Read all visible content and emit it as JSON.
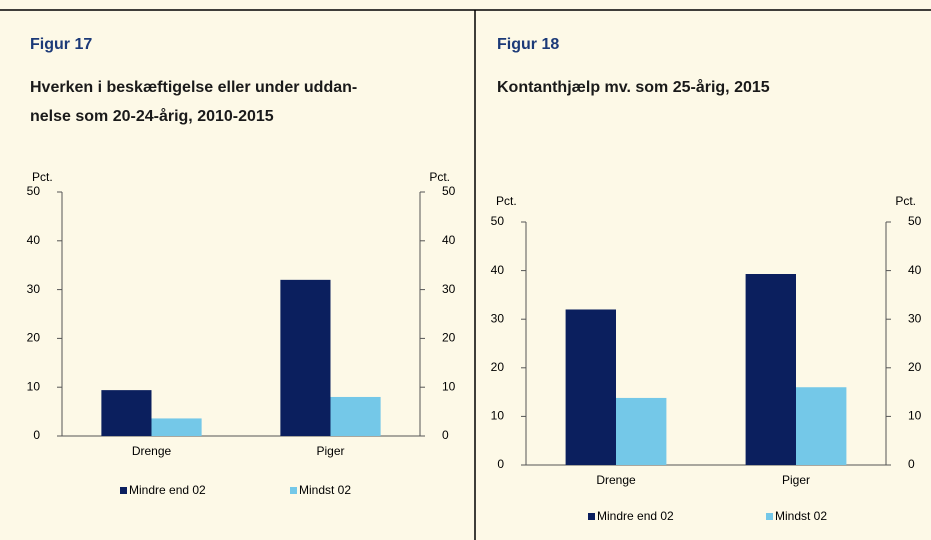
{
  "chart_data": [
    {
      "type": "bar",
      "label": "Figur 17",
      "title": [
        "Hverken i beskæftigelse eller under uddan-",
        "nelse som 20-24-årig, 2010-2015"
      ],
      "ylabel": "Pct.",
      "y2label": "Pct.",
      "categories": [
        "Drenge",
        "Piger"
      ],
      "series": [
        {
          "name": "Mindre end 02",
          "color": "#0b1f5e",
          "values": [
            9.4,
            32
          ]
        },
        {
          "name": "Mindst 02",
          "color": "#74c8e8",
          "values": [
            3.6,
            8
          ]
        }
      ],
      "ylim": [
        0,
        50
      ],
      "yticks": [
        0,
        10,
        20,
        30,
        40,
        50
      ],
      "y2lim": [
        0,
        50
      ],
      "y2ticks": [
        0,
        10,
        20,
        30,
        40,
        50
      ]
    },
    {
      "type": "bar",
      "label": "Figur 18",
      "title": [
        "Kontanthjælp mv. som 25-årig, 2015"
      ],
      "ylabel": "Pct.",
      "y2label": "Pct.",
      "categories": [
        "Drenge",
        "Piger"
      ],
      "series": [
        {
          "name": "Mindre end 02",
          "color": "#0b1f5e",
          "values": [
            32,
            39.3
          ]
        },
        {
          "name": "Mindst 02",
          "color": "#74c8e8",
          "values": [
            13.8,
            16
          ]
        }
      ],
      "ylim": [
        0,
        50
      ],
      "yticks": [
        0,
        10,
        20,
        30,
        40,
        50
      ],
      "y2lim": [
        0,
        50
      ],
      "y2ticks": [
        0,
        10,
        20,
        30,
        40,
        50
      ]
    }
  ]
}
